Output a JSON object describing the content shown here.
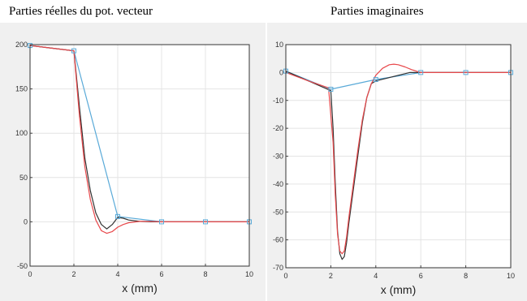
{
  "titles": {
    "left": "Parties réelles du pot. vecteur",
    "right": "Parties imaginaires"
  },
  "chart_data": [
    {
      "type": "line",
      "title": "Parties réelles du pot. vecteur",
      "xlabel": "x  (mm)",
      "ylabel": "",
      "xlim": [
        0,
        10
      ],
      "ylim": [
        -50,
        200
      ],
      "xticks": [
        0,
        2,
        4,
        6,
        8,
        10
      ],
      "yticks": [
        -50,
        0,
        50,
        100,
        150,
        200
      ],
      "grid": true,
      "series": [
        {
          "color": "#5aaad8",
          "marker": "square",
          "x": [
            0,
            2,
            4,
            6,
            8,
            10
          ],
          "y": [
            199,
            193,
            6,
            0,
            0,
            0
          ]
        },
        {
          "color": "#333333",
          "x": [
            0,
            2,
            2.25,
            2.5,
            2.75,
            3,
            3.25,
            3.5,
            3.75,
            4,
            4.25,
            4.5,
            5,
            5.5,
            6,
            7,
            8,
            9,
            10
          ],
          "y": [
            199,
            193,
            130,
            72,
            35,
            10,
            -3,
            -8,
            -3,
            5,
            4,
            2,
            0.5,
            0,
            0,
            0,
            0,
            0,
            0
          ]
        },
        {
          "color": "#e8484b",
          "x": [
            0,
            2,
            2.25,
            2.5,
            2.75,
            3,
            3.25,
            3.5,
            3.75,
            4,
            4.25,
            4.5,
            5,
            5.5,
            6,
            7,
            8,
            9,
            10
          ],
          "y": [
            199,
            193,
            120,
            62,
            25,
            2,
            -10,
            -13,
            -11,
            -6,
            -3,
            -1,
            0.5,
            0.5,
            0,
            0,
            0,
            0,
            0
          ]
        }
      ]
    },
    {
      "type": "line",
      "title": "Parties imaginaires",
      "xlabel": "x  (mm)",
      "ylabel": "",
      "xlim": [
        0,
        10
      ],
      "ylim": [
        -70,
        10
      ],
      "xticks": [
        0,
        2,
        4,
        6,
        8,
        10
      ],
      "yticks": [
        -70,
        -60,
        -50,
        -40,
        -30,
        -20,
        -10,
        0,
        10
      ],
      "grid": true,
      "series": [
        {
          "color": "#5aaad8",
          "marker": "square",
          "x": [
            0,
            2,
            4,
            6,
            8,
            10
          ],
          "y": [
            0.5,
            -6,
            -2.5,
            0,
            0,
            0
          ]
        },
        {
          "color": "#333333",
          "x": [
            0,
            1,
            2,
            2.1,
            2.2,
            2.3,
            2.4,
            2.5,
            2.6,
            2.7,
            2.8,
            3,
            3.2,
            3.4,
            3.6,
            3.8,
            4,
            4.5,
            5,
            5.5,
            6,
            7,
            8,
            9,
            10
          ],
          "y": [
            0.5,
            -3,
            -6.5,
            -20,
            -40,
            -57,
            -65,
            -67,
            -66,
            -61,
            -54,
            -42,
            -30,
            -18,
            -9,
            -4,
            -3,
            -2,
            -1,
            0,
            0,
            0,
            0,
            0,
            0
          ]
        },
        {
          "color": "#e8484b",
          "x": [
            0,
            1,
            1.9,
            2.1,
            2.2,
            2.3,
            2.4,
            2.5,
            2.6,
            2.7,
            2.8,
            3,
            3.2,
            3.4,
            3.6,
            3.8,
            4,
            4.3,
            4.6,
            4.8,
            5,
            5.3,
            5.6,
            6,
            7,
            8,
            9,
            10
          ],
          "y": [
            0,
            -3,
            -5.5,
            -25,
            -44,
            -58,
            -64,
            -65,
            -64,
            -59,
            -52,
            -40,
            -28,
            -17,
            -9,
            -4,
            -1,
            1.5,
            2.8,
            3,
            2.8,
            2,
            1,
            0,
            0,
            0,
            0,
            0
          ]
        }
      ]
    }
  ]
}
